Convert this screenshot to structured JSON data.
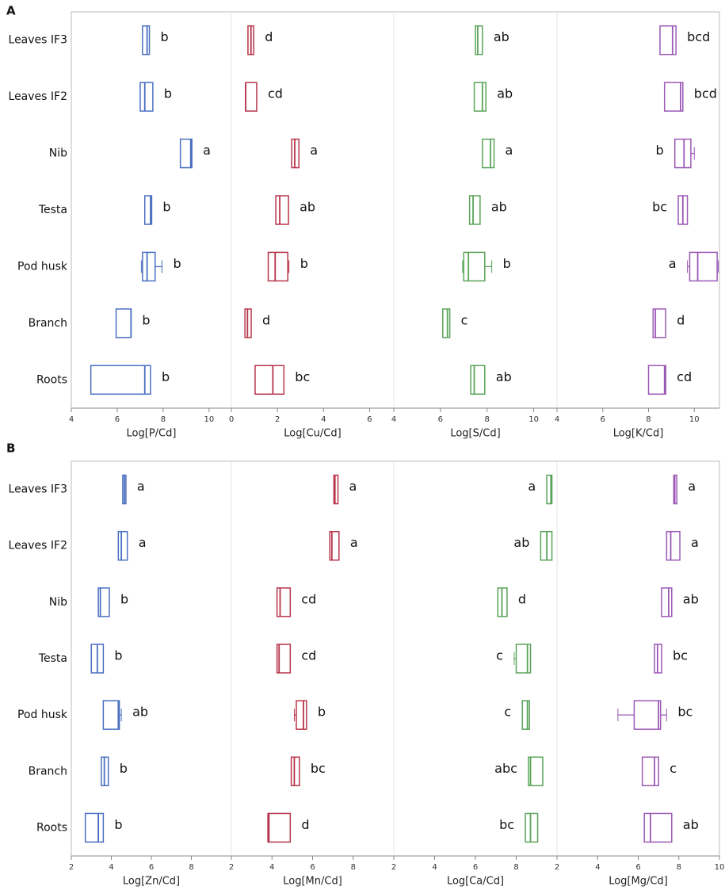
{
  "panel_labels": [
    "A",
    "B"
  ],
  "categories": [
    "Leaves IF3",
    "Leaves IF2",
    "Nib",
    "Testa",
    "Pod husk",
    "Branch",
    "Roots"
  ],
  "chart_data": [
    {
      "type": "box",
      "x_label": "Log[P/Cd]",
      "color": "#4a6fc1",
      "xlim": [
        4,
        10.97
      ],
      "xticks": [
        4,
        6,
        8,
        10
      ],
      "boxes": [
        {
          "q1": 7.1,
          "median": 7.3,
          "q3": 7.4,
          "letter": "b"
        },
        {
          "q1": 7.0,
          "median": 7.2,
          "q3": 7.55,
          "letter": "b"
        },
        {
          "q1": 8.75,
          "median": 9.2,
          "q3": 9.25,
          "letter": "a"
        },
        {
          "q1": 7.2,
          "median": 7.45,
          "q3": 7.5,
          "letter": "b"
        },
        {
          "min": 7.05,
          "q1": 7.1,
          "median": 7.3,
          "q3": 7.65,
          "max": 7.95,
          "letter": "b"
        },
        {
          "q1": 5.95,
          "median": 6.6,
          "q3": 6.6,
          "letter": "b"
        },
        {
          "q1": 4.85,
          "median": 7.2,
          "q3": 7.45,
          "letter": "b"
        }
      ]
    },
    {
      "type": "box",
      "x_label": "Log[Cu/Cd]",
      "color": "#b8344a",
      "xlim": [
        0,
        7.05
      ],
      "xticks": [
        0,
        2,
        4,
        6
      ],
      "boxes": [
        {
          "q1": 0.72,
          "median": 0.85,
          "q3": 0.97,
          "letter": "d"
        },
        {
          "q1": 0.62,
          "median": 0.62,
          "q3": 1.1,
          "letter": "cd"
        },
        {
          "q1": 2.62,
          "median": 2.75,
          "q3": 2.93,
          "letter": "a"
        },
        {
          "q1": 1.93,
          "median": 2.1,
          "q3": 2.48,
          "letter": "ab"
        },
        {
          "q1": 1.6,
          "median": 1.9,
          "q3": 2.45,
          "max": 2.5,
          "letter": "b"
        },
        {
          "q1": 0.59,
          "median": 0.7,
          "q3": 0.86,
          "letter": "d"
        },
        {
          "q1": 1.03,
          "median": 1.8,
          "q3": 2.28,
          "letter": "bc"
        }
      ]
    },
    {
      "type": "box",
      "x_label": "Log[S/Cd]",
      "color": "#5aa35a",
      "xlim": [
        4,
        11
      ],
      "xticks": [
        4,
        6,
        8,
        10
      ],
      "boxes": [
        {
          "q1": 7.5,
          "median": 7.6,
          "q3": 7.8,
          "letter": "ab"
        },
        {
          "q1": 7.45,
          "median": 7.8,
          "q3": 7.95,
          "letter": "ab"
        },
        {
          "q1": 7.8,
          "median": 8.15,
          "q3": 8.3,
          "letter": "a"
        },
        {
          "q1": 7.25,
          "median": 7.4,
          "q3": 7.7,
          "letter": "ab"
        },
        {
          "min": 6.95,
          "q1": 7.0,
          "median": 7.2,
          "q3": 7.9,
          "max": 8.2,
          "letter": "b"
        },
        {
          "q1": 6.1,
          "median": 6.3,
          "q3": 6.4,
          "letter": "c"
        },
        {
          "q1": 7.3,
          "median": 7.45,
          "q3": 7.9,
          "letter": "ab"
        }
      ]
    },
    {
      "type": "box",
      "x_label": "Log[K/Cd]",
      "color": "#9b59b6",
      "xlim": [
        4,
        11.1
      ],
      "xticks": [
        4,
        6,
        8,
        10
      ],
      "boxes": [
        {
          "q1": 8.5,
          "median": 9.05,
          "q3": 9.2,
          "letter": "bcd"
        },
        {
          "q1": 8.7,
          "median": 9.4,
          "q3": 9.5,
          "letter": "bcd"
        },
        {
          "q1": 9.15,
          "median": 9.55,
          "q3": 9.85,
          "max": 10.0,
          "letter": "b"
        },
        {
          "q1": 9.3,
          "median": 9.5,
          "q3": 9.7,
          "letter": "bc"
        },
        {
          "min": 9.7,
          "q1": 9.8,
          "median": 10.15,
          "q3": 11.0,
          "max": 11.05,
          "letter": "a"
        },
        {
          "q1": 8.2,
          "median": 8.3,
          "q3": 8.75,
          "letter": "d"
        },
        {
          "q1": 8.0,
          "median": 8.7,
          "q3": 8.75,
          "letter": "cd"
        }
      ]
    },
    {
      "type": "box",
      "x_label": "Log[Zn/Cd]",
      "color": "#4a6fc1",
      "xlim": [
        2,
        10
      ],
      "xticks": [
        2,
        4,
        6,
        8
      ],
      "boxes": [
        {
          "q1": 4.57,
          "median": 4.65,
          "q3": 4.73,
          "letter": "a"
        },
        {
          "q1": 4.35,
          "median": 4.5,
          "q3": 4.8,
          "letter": "a"
        },
        {
          "q1": 3.35,
          "median": 3.45,
          "q3": 3.9,
          "letter": "b"
        },
        {
          "q1": 3.0,
          "median": 3.3,
          "q3": 3.6,
          "letter": "b"
        },
        {
          "q1": 3.6,
          "median": 4.35,
          "q3": 4.4,
          "max": 4.5,
          "letter": "ab"
        },
        {
          "q1": 3.5,
          "median": 3.65,
          "q3": 3.85,
          "letter": "b"
        },
        {
          "q1": 2.7,
          "median": 3.35,
          "q3": 3.6,
          "letter": "b"
        }
      ]
    },
    {
      "type": "box",
      "x_label": "Log[Mn/Cd]",
      "color": "#b8344a",
      "xlim": [
        2,
        10
      ],
      "xticks": [
        2,
        4,
        6,
        8
      ],
      "boxes": [
        {
          "q1": 7.05,
          "median": 7.1,
          "q3": 7.25,
          "letter": "a"
        },
        {
          "q1": 6.85,
          "median": 6.95,
          "q3": 7.3,
          "letter": "a"
        },
        {
          "q1": 4.25,
          "median": 4.4,
          "q3": 4.9,
          "letter": "cd"
        },
        {
          "q1": 4.25,
          "median": 4.35,
          "q3": 4.9,
          "letter": "cd"
        },
        {
          "min": 5.1,
          "q1": 5.2,
          "median": 5.55,
          "q3": 5.7,
          "letter": "b"
        },
        {
          "q1": 4.95,
          "median": 5.1,
          "q3": 5.35,
          "letter": "bc"
        },
        {
          "q1": 3.8,
          "median": 3.85,
          "q3": 4.9,
          "letter": "d"
        }
      ]
    },
    {
      "type": "box",
      "x_label": "Log[Ca/Cd]",
      "color": "#5aa35a",
      "xlim": [
        2,
        10
      ],
      "xticks": [
        2,
        4,
        6,
        8
      ],
      "boxes": [
        {
          "q1": 9.5,
          "median": 9.7,
          "q3": 9.75,
          "letter": "a"
        },
        {
          "q1": 9.2,
          "median": 9.5,
          "q3": 9.75,
          "letter": "ab"
        },
        {
          "q1": 7.1,
          "median": 7.3,
          "q3": 7.55,
          "letter": "d"
        },
        {
          "min": 7.9,
          "q1": 8.0,
          "median": 8.55,
          "q3": 8.7,
          "letter": "c"
        },
        {
          "q1": 8.3,
          "median": 8.55,
          "q3": 8.65,
          "letter": "c"
        },
        {
          "q1": 8.6,
          "median": 8.7,
          "q3": 9.3,
          "letter": "abc"
        },
        {
          "q1": 8.45,
          "median": 8.7,
          "q3": 9.05,
          "letter": "bc"
        }
      ]
    },
    {
      "type": "box",
      "x_label": "Log[Mg/Cd]",
      "color": "#9b59b6",
      "xlim": [
        2,
        10
      ],
      "xticks": [
        2,
        4,
        6,
        8,
        10
      ],
      "boxes": [
        {
          "q1": 7.75,
          "median": 7.8,
          "q3": 7.9,
          "letter": "a"
        },
        {
          "q1": 7.4,
          "median": 7.6,
          "q3": 8.05,
          "letter": "a"
        },
        {
          "q1": 7.15,
          "median": 7.5,
          "q3": 7.65,
          "letter": "ab"
        },
        {
          "q1": 6.8,
          "median": 6.95,
          "q3": 7.15,
          "letter": "bc"
        },
        {
          "min": 5.0,
          "q1": 5.8,
          "median": 7.0,
          "q3": 7.1,
          "max": 7.4,
          "letter": "bc"
        },
        {
          "q1": 6.2,
          "median": 6.8,
          "q3": 7.0,
          "letter": "c"
        },
        {
          "q1": 6.3,
          "median": 6.6,
          "q3": 7.65,
          "letter": "ab"
        }
      ]
    }
  ]
}
